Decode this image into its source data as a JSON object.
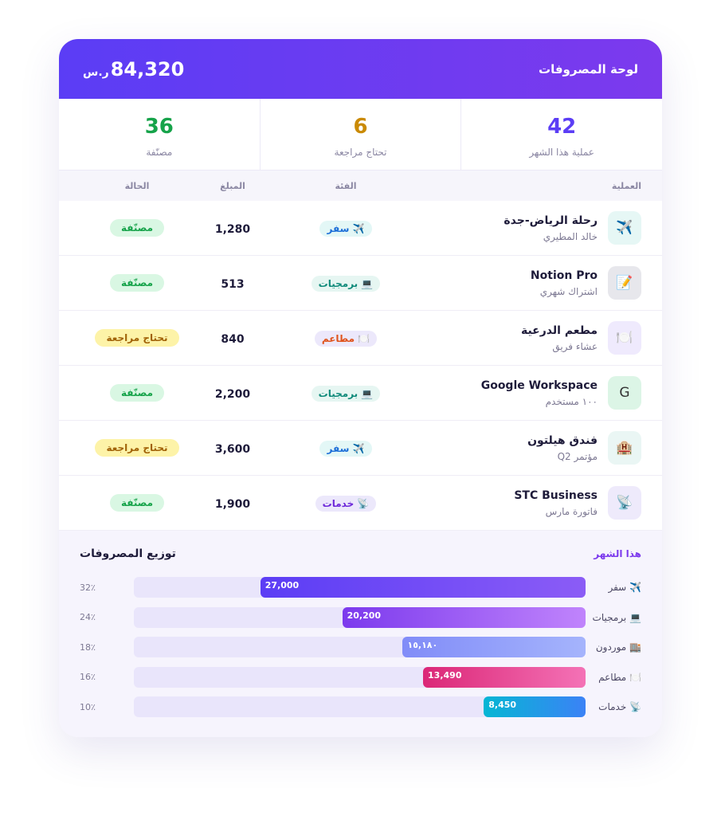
{
  "header": {
    "title": "لوحة المصروفات",
    "total": "84,320",
    "currency": "ر.س"
  },
  "stats": [
    {
      "value": "42",
      "label": "عملية هذا الشهر",
      "color": "#5b3df5"
    },
    {
      "value": "6",
      "label": "تحتاج مراجعة",
      "color": "#ca8a04"
    },
    {
      "value": "36",
      "label": "مصنّفة",
      "color": "#16a34a"
    }
  ],
  "table": {
    "columns": [
      "العملية",
      "الفئة",
      "المبلغ",
      "الحالة"
    ],
    "rows": [
      {
        "icon": "✈️",
        "icon_color": "#e6f7f5",
        "title": "رحلة الرياض-جدة",
        "subtitle": "خالد المطيري",
        "category": "✈️ سفر",
        "category_color": "#1d6fd8",
        "category_bg": "#e3f7f6",
        "amount": "1,280",
        "status": "مصنّفة",
        "status_color": "#16a34a",
        "status_bg": "#d9f7e3"
      },
      {
        "icon": "📝",
        "icon_color": "#e7e7ec",
        "title": "Notion Pro",
        "subtitle": "اشتراك شهري",
        "category": "💻 برمجيات",
        "category_color": "#0f8a7a",
        "category_bg": "#e6f6f2",
        "amount": "513",
        "status": "مصنّفة",
        "status_color": "#16a34a",
        "status_bg": "#d9f7e3"
      },
      {
        "icon": "🍽️",
        "icon_color": "#efeafd",
        "title": "مطعم الدرعية",
        "subtitle": "عشاء فريق",
        "category": "🍽️ مطاعم",
        "category_color": "#e0531c",
        "category_bg": "#ece8fb",
        "amount": "840",
        "status": "تحتاج مراجعة",
        "status_color": "#a16207",
        "status_bg": "#fdf3a8"
      },
      {
        "icon": "G",
        "icon_color": "#dcf5e6",
        "title": "Google Workspace",
        "subtitle": "١٠٠ مستخدم",
        "category": "💻 برمجيات",
        "category_color": "#0f8a7a",
        "category_bg": "#e6f6f2",
        "amount": "2,200",
        "status": "مصنّفة",
        "status_color": "#16a34a",
        "status_bg": "#d9f7e3"
      },
      {
        "icon": "🏨",
        "icon_color": "#eaf6f4",
        "title": "فندق هيلتون",
        "subtitle": "مؤتمر Q2",
        "category": "✈️ سفر",
        "category_color": "#1d6fd8",
        "category_bg": "#e3f7f6",
        "amount": "3,600",
        "status": "تحتاج مراجعة",
        "status_color": "#a16207",
        "status_bg": "#fdf3a8"
      },
      {
        "icon": "📡",
        "icon_color": "#eeeafb",
        "title": "STC Business",
        "subtitle": "فاتورة مارس",
        "category": "📡 خدمات",
        "category_color": "#6d28d9",
        "category_bg": "#ece8fb",
        "amount": "1,900",
        "status": "مصنّفة",
        "status_color": "#16a34a",
        "status_bg": "#d9f7e3"
      }
    ]
  },
  "distribution": {
    "title": "توزيع المصروفات",
    "period": "هذا الشهر",
    "bars": [
      {
        "label": "✈️ سفر",
        "value": 27000,
        "value_label": "27,000",
        "percent": "32٪",
        "color": [
          "#5b3df5",
          "#8b5cf6"
        ]
      },
      {
        "label": "💻 برمجيات",
        "value": 20200,
        "value_label": "20,200",
        "percent": "24٪",
        "color": [
          "#7c3aed",
          "#c084fc"
        ]
      },
      {
        "label": "🏬 موردون",
        "value": 15180,
        "value_label": "١٥,١٨٠",
        "percent": "18٪",
        "color": [
          "#818cf8",
          "#a5b4fc"
        ]
      },
      {
        "label": "🍽️ مطاعم",
        "value": 13490,
        "value_label": "13,490",
        "percent": "16٪",
        "color": [
          "#db2777",
          "#f472b6"
        ]
      },
      {
        "label": "📡 خدمات",
        "value": 8450,
        "value_label": "8,450",
        "percent": "10٪",
        "color": [
          "#06b6d4",
          "#3b82f6"
        ]
      }
    ]
  }
}
